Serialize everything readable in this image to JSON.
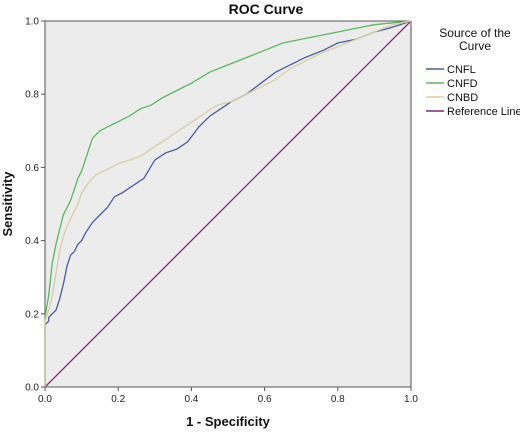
{
  "chart_data": {
    "type": "line",
    "title": "ROC Curve",
    "xlabel": "1 - Specificity",
    "ylabel": "Sensitivity",
    "xlim": [
      0,
      1
    ],
    "ylim": [
      0,
      1
    ],
    "xticks": [
      "0.0",
      "0.2",
      "0.4",
      "0.6",
      "0.8",
      "1.0"
    ],
    "yticks": [
      "0.0",
      "0.2",
      "0.4",
      "0.6",
      "0.8",
      "1.0"
    ],
    "grid": false,
    "legend_title": "Source of the Curve",
    "legend_position": "right",
    "series": [
      {
        "name": "CNFL",
        "color": "#4a5d9e",
        "x": [
          0.0,
          0.0,
          0.01,
          0.01,
          0.02,
          0.03,
          0.04,
          0.05,
          0.06,
          0.07,
          0.08,
          0.09,
          0.1,
          0.11,
          0.13,
          0.15,
          0.17,
          0.19,
          0.21,
          0.24,
          0.27,
          0.3,
          0.33,
          0.36,
          0.39,
          0.42,
          0.45,
          0.48,
          0.51,
          0.55,
          0.59,
          0.63,
          0.67,
          0.71,
          0.76,
          0.8,
          0.85,
          0.9,
          0.94,
          0.97,
          1.0
        ],
        "y": [
          0.0,
          0.17,
          0.18,
          0.19,
          0.2,
          0.21,
          0.24,
          0.28,
          0.33,
          0.36,
          0.37,
          0.39,
          0.4,
          0.42,
          0.45,
          0.47,
          0.49,
          0.52,
          0.53,
          0.55,
          0.57,
          0.62,
          0.64,
          0.65,
          0.67,
          0.71,
          0.74,
          0.76,
          0.78,
          0.8,
          0.83,
          0.86,
          0.88,
          0.9,
          0.92,
          0.94,
          0.95,
          0.97,
          0.98,
          0.99,
          1.0
        ]
      },
      {
        "name": "CNFD",
        "color": "#5cb85c",
        "x": [
          0.0,
          0.0,
          0.01,
          0.02,
          0.03,
          0.04,
          0.05,
          0.06,
          0.07,
          0.08,
          0.09,
          0.1,
          0.11,
          0.12,
          0.13,
          0.15,
          0.17,
          0.19,
          0.21,
          0.23,
          0.26,
          0.29,
          0.32,
          0.36,
          0.4,
          0.45,
          0.5,
          0.55,
          0.6,
          0.65,
          0.7,
          0.75,
          0.8,
          0.85,
          0.9,
          0.95,
          1.0
        ],
        "y": [
          0.0,
          0.19,
          0.25,
          0.34,
          0.39,
          0.43,
          0.47,
          0.49,
          0.51,
          0.54,
          0.57,
          0.59,
          0.62,
          0.65,
          0.68,
          0.7,
          0.71,
          0.72,
          0.73,
          0.74,
          0.76,
          0.77,
          0.79,
          0.81,
          0.83,
          0.86,
          0.88,
          0.9,
          0.92,
          0.94,
          0.95,
          0.96,
          0.97,
          0.98,
          0.99,
          0.995,
          1.0
        ]
      },
      {
        "name": "CNBD",
        "color": "#d6cfa4",
        "x": [
          0.0,
          0.0,
          0.01,
          0.02,
          0.03,
          0.04,
          0.05,
          0.06,
          0.07,
          0.08,
          0.09,
          0.1,
          0.12,
          0.14,
          0.16,
          0.18,
          0.2,
          0.23,
          0.26,
          0.29,
          0.32,
          0.35,
          0.38,
          0.41,
          0.44,
          0.47,
          0.51,
          0.55,
          0.59,
          0.63,
          0.67,
          0.71,
          0.75,
          0.8,
          0.85,
          0.9,
          0.95,
          1.0
        ],
        "y": [
          0.0,
          0.18,
          0.21,
          0.25,
          0.31,
          0.37,
          0.41,
          0.44,
          0.46,
          0.48,
          0.5,
          0.53,
          0.56,
          0.58,
          0.59,
          0.6,
          0.61,
          0.62,
          0.63,
          0.65,
          0.67,
          0.69,
          0.71,
          0.73,
          0.75,
          0.77,
          0.78,
          0.8,
          0.82,
          0.84,
          0.87,
          0.89,
          0.91,
          0.93,
          0.95,
          0.97,
          0.99,
          1.0
        ]
      },
      {
        "name": "Reference Line",
        "color": "#7b2a7b",
        "x": [
          0.0,
          1.0
        ],
        "y": [
          0.0,
          1.0
        ]
      }
    ]
  }
}
